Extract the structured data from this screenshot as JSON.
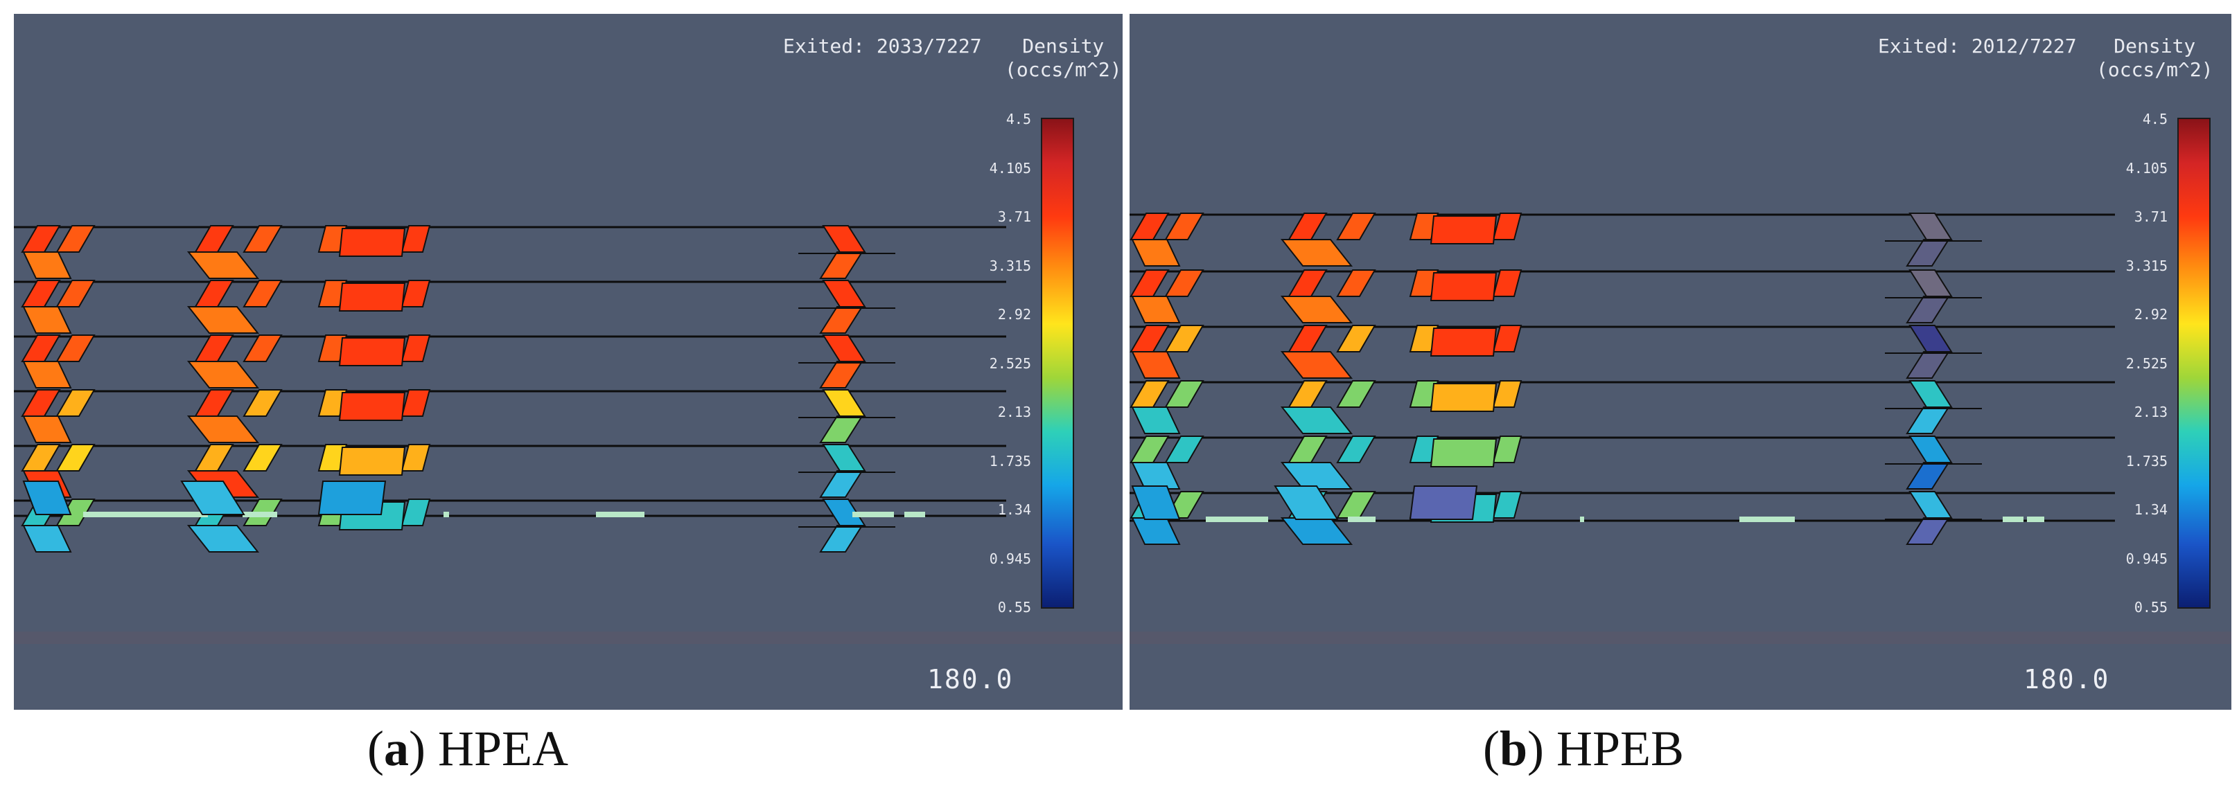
{
  "panels": [
    {
      "id": "a",
      "exited": "Exited: 2033/7227",
      "density_title_1": "Density",
      "density_title_2": "(occs/m^2)",
      "colorbar_ticks": [
        "4.5",
        "4.105",
        "3.71",
        "3.315",
        "2.92",
        "2.525",
        "2.13",
        "1.735",
        "1.34",
        "0.945",
        "0.55"
      ],
      "time": "180.0",
      "caption_letter": "a",
      "caption_text": "HPEA"
    },
    {
      "id": "b",
      "exited": "Exited: 2012/7227",
      "density_title_1": "Density",
      "density_title_2": "(occs/m^2)",
      "colorbar_ticks": [
        "4.5",
        "4.105",
        "3.71",
        "3.315",
        "2.92",
        "2.525",
        "2.13",
        "1.735",
        "1.34",
        "0.945",
        "0.55"
      ],
      "time": "180.0",
      "caption_letter": "b",
      "caption_text": "HPEB"
    }
  ],
  "colors": {
    "background": "#4f5a6f",
    "high_density": "#ff3a10",
    "mid_density": "#ffe51c",
    "low_density": "#15a6e8",
    "very_low_density": "#0b1f72"
  }
}
